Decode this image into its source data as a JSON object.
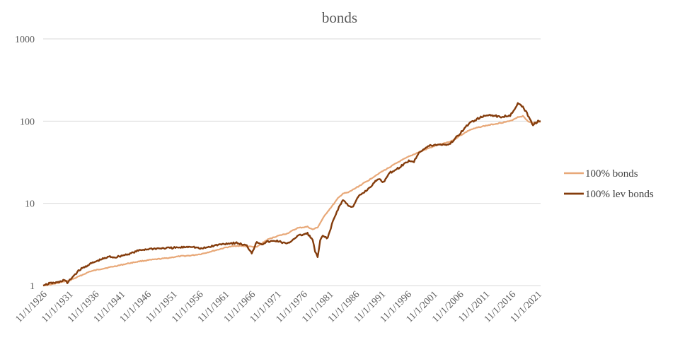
{
  "chart_data": {
    "type": "line",
    "title": "bonds",
    "xlabel": "",
    "ylabel": "",
    "y_scale": "log",
    "ylim": [
      1,
      1000
    ],
    "y_ticks": [
      1,
      10,
      100,
      1000
    ],
    "y_tick_labels": [
      "1",
      "10",
      "100",
      "1000"
    ],
    "xlim": [
      1926.83,
      2025.0
    ],
    "x_tick_labels": [
      "11/1/1926",
      "11/1/1931",
      "11/1/1936",
      "11/1/1941",
      "11/1/1946",
      "11/1/1951",
      "11/1/1956",
      "11/1/1961",
      "11/1/1966",
      "11/1/1971",
      "11/1/1976",
      "11/1/1981",
      "11/1/1986",
      "11/1/1991",
      "11/1/1996",
      "11/1/2001",
      "11/1/2006",
      "11/1/2011",
      "11/1/2016",
      "11/1/2021"
    ],
    "grid": {
      "horizontal": true,
      "vertical": false
    },
    "legend_position": "right",
    "series": [
      {
        "name": "100% bonds",
        "color": "#E8A878",
        "x": [
          1926.83,
          1929.0,
          1931.0,
          1932.0,
          1934.0,
          1936.0,
          1938.0,
          1941.0,
          1944.0,
          1946.0,
          1948.0,
          1951.0,
          1954.0,
          1956.0,
          1958.0,
          1961.0,
          1963.0,
          1965.0,
          1967.0,
          1969.0,
          1971.0,
          1973.0,
          1975.0,
          1977.0,
          1979.0,
          1980.0,
          1981.0,
          1982.0,
          1983.0,
          1984.0,
          1985.0,
          1986.0,
          1987.0,
          1989.0,
          1991.0,
          1993.0,
          1995.0,
          1997.0,
          1999.0,
          2001.0,
          2003.0,
          2005.0,
          2007.0,
          2008.0,
          2009.0,
          2011.0,
          2013.0,
          2015.0,
          2017.0,
          2019.0,
          2020.5,
          2021.5,
          2022.5,
          2023.5,
          2024.5,
          2025.0
        ],
        "values": [
          1.0,
          1.05,
          1.12,
          1.15,
          1.3,
          1.48,
          1.58,
          1.72,
          1.88,
          1.98,
          2.05,
          2.15,
          2.28,
          2.32,
          2.42,
          2.7,
          2.92,
          3.05,
          3.0,
          2.95,
          3.6,
          4.0,
          4.3,
          5.0,
          5.2,
          4.8,
          5.1,
          6.5,
          8.0,
          9.5,
          11.5,
          13.2,
          13.5,
          16.0,
          19.0,
          23.0,
          27.0,
          32.0,
          37.0,
          42.0,
          47.0,
          52.0,
          56.0,
          60.0,
          66.0,
          78.0,
          85.0,
          90.0,
          95.0,
          100.0,
          112.0,
          115.0,
          100.0,
          95.0,
          97.0,
          98.0
        ]
      },
      {
        "name": "100% lev bonds",
        "color": "#843C0C",
        "x": [
          1926.83,
          1928.0,
          1930.0,
          1931.0,
          1931.6,
          1932.5,
          1934.0,
          1936.0,
          1938.0,
          1940.0,
          1941.0,
          1944.0,
          1946.0,
          1948.0,
          1951.0,
          1954.0,
          1956.0,
          1958.0,
          1961.0,
          1963.0,
          1965.0,
          1967.0,
          1968.0,
          1969.0,
          1970.0,
          1971.0,
          1973.0,
          1975.0,
          1977.0,
          1979.0,
          1980.0,
          1980.5,
          1981.0,
          1981.5,
          1982.0,
          1983.0,
          1984.0,
          1985.0,
          1986.0,
          1987.0,
          1988.0,
          1989.0,
          1991.0,
          1993.0,
          1994.0,
          1995.0,
          1997.0,
          1999.0,
          2000.0,
          2001.0,
          2003.0,
          2005.0,
          2007.0,
          2008.0,
          2009.0,
          2011.0,
          2013.0,
          2015.0,
          2017.0,
          2019.0,
          2020.5,
          2021.5,
          2022.5,
          2023.5,
          2024.5,
          2025.0
        ],
        "values": [
          1.0,
          1.06,
          1.1,
          1.18,
          1.07,
          1.25,
          1.55,
          1.82,
          2.05,
          2.25,
          2.2,
          2.45,
          2.7,
          2.8,
          2.85,
          2.9,
          3.0,
          2.8,
          3.1,
          3.25,
          3.3,
          3.05,
          2.5,
          3.4,
          3.2,
          3.4,
          3.5,
          3.2,
          4.0,
          4.3,
          3.6,
          2.6,
          2.2,
          3.5,
          4.0,
          3.8,
          6.0,
          8.5,
          11.0,
          9.5,
          9.0,
          12.0,
          15.0,
          20.0,
          18.0,
          23.0,
          27.0,
          33.0,
          32.0,
          42.0,
          50.0,
          52.0,
          52.0,
          60.0,
          70.0,
          95.0,
          110.0,
          120.0,
          112.0,
          118.0,
          162.0,
          150.0,
          118.0,
          90.0,
          100.0,
          100.0
        ]
      }
    ]
  }
}
